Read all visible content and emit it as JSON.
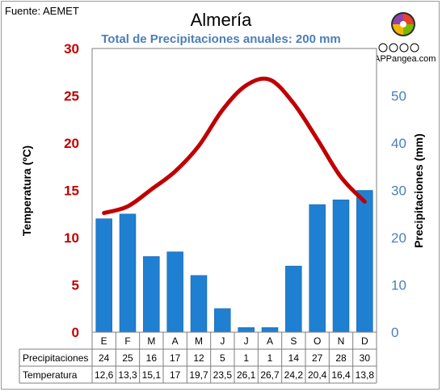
{
  "source_label": "Fuente: AEMET",
  "title": "Almería",
  "subtitle": "Total de Precipitaciones anuales: 200 mm",
  "logo_text": "APPangea.com",
  "chart_data": {
    "type": "bar+line",
    "categories": [
      "E",
      "F",
      "M",
      "A",
      "M",
      "J",
      "J",
      "A",
      "S",
      "O",
      "N",
      "D"
    ],
    "precipitation": {
      "name": "Precipitaciones",
      "values": [
        24,
        25,
        16,
        17,
        12,
        5,
        1,
        1,
        14,
        27,
        28,
        30
      ],
      "color": "#1f7fd1",
      "ylabel": "Precipitaciones (mm)",
      "ylim": [
        0,
        60
      ],
      "ticks": [
        0,
        10,
        20,
        30,
        40,
        50
      ]
    },
    "temperature": {
      "name": "Temperatura",
      "values": [
        12.6,
        13.3,
        15.1,
        17,
        19.7,
        23.5,
        26.1,
        26.7,
        24.2,
        20.4,
        16.4,
        13.8
      ],
      "labels": [
        "12,6",
        "13,3",
        "15,1",
        "17",
        "19,7",
        "23,5",
        "26,1",
        "26,7",
        "24,2",
        "20,4",
        "16,4",
        "13,8"
      ],
      "color": "#c00000",
      "ylabel": "Temperatura (ºC)",
      "ylim": [
        0,
        30
      ],
      "ticks": [
        0,
        5,
        10,
        15,
        20,
        25,
        30
      ]
    }
  }
}
